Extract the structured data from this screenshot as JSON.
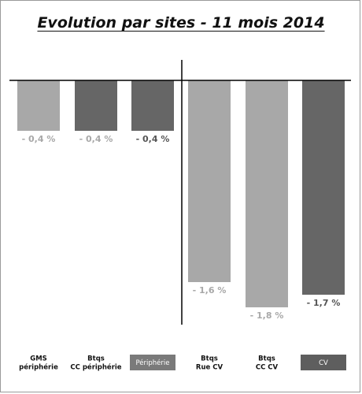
{
  "chart_data": {
    "type": "bar",
    "title": "Evolution par sites - 11 mois 2014",
    "categories": [
      [
        "GMS",
        "périphérie"
      ],
      [
        "Btqs",
        "CC périphérie"
      ],
      [
        "Périphérie"
      ],
      [
        "Btqs",
        "Rue CV"
      ],
      [
        "Btqs",
        "CC CV"
      ],
      [
        "CV"
      ]
    ],
    "values": [
      -0.4,
      -0.4,
      -0.4,
      -1.6,
      -1.8,
      -1.7
    ],
    "data_labels": [
      "- 0,4 %",
      "- 0,4 %",
      "- 0,4 %",
      "- 1,6 %",
      "- 1,8 %",
      "- 1,7 %"
    ],
    "ylim": [
      -2.0,
      0
    ],
    "grid": false,
    "legend": "none"
  },
  "colors": {
    "light": "#a8a8a8",
    "dark": "#666666",
    "label_light": "#a8a8a8",
    "label_dark": "#555555",
    "category_boxes": [
      "none",
      "none",
      "#7a7a7a",
      "none",
      "none",
      "#5e5e5e"
    ],
    "bar_colors": [
      "#a8a8a8",
      "#666666",
      "#666666",
      "#a8a8a8",
      "#a8a8a8",
      "#666666"
    ],
    "label_colors": [
      "#a8a8a8",
      "#a8a8a8",
      "#555555",
      "#a8a8a8",
      "#a8a8a8",
      "#555555"
    ]
  }
}
